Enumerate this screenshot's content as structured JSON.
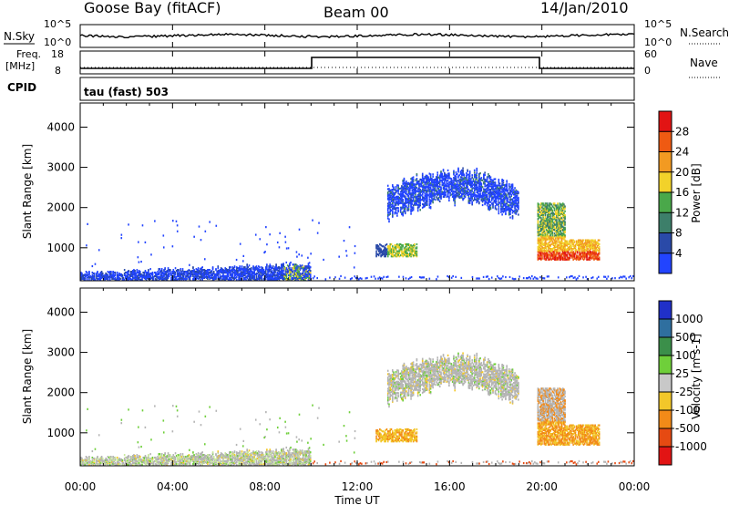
{
  "header": {
    "station": "Goose Bay (fitACF)",
    "beam": "Beam 00",
    "date": "14/Jan/2010"
  },
  "top_panels": {
    "nsky_label": "N.Sky",
    "nsearch_label": "N.Search",
    "freq_label_1": "Freq.",
    "freq_label_2": "[MHz]",
    "nave_label": "Nave",
    "cpid_label": "CPID",
    "cpid_text": "tau (fast) 503",
    "noise_tick_hi": "10^5",
    "noise_tick_lo": "10^0",
    "freq_tick_hi": "18",
    "freq_tick_lo": "8",
    "nave_tick_hi": "60",
    "nave_tick_lo": "0"
  },
  "chart_data": [
    {
      "type": "heatmap",
      "title": "Power",
      "xlabel": "Time UT",
      "ylabel": "Slant Range [km]",
      "xlim": [
        "00:00",
        "24:00"
      ],
      "ylim": [
        180,
        4600
      ],
      "x_ticks": [
        "00:00",
        "04:00",
        "08:00",
        "12:00",
        "16:00",
        "20:00",
        "00:00"
      ],
      "y_ticks": [
        1000,
        2000,
        3000,
        4000
      ],
      "colorbar": {
        "label": "Power [dB]",
        "ticks": [
          "4",
          "8",
          "12",
          "16",
          "20",
          "24",
          "28"
        ],
        "colors": [
          "#2244ff",
          "#2a4aa8",
          "#3d7f6a",
          "#4aa84a",
          "#f2d22a",
          "#f29a22",
          "#ef5a12",
          "#e21414"
        ]
      },
      "echo_regions": [
        {
          "t_start": 0.0,
          "t_end": 9.9,
          "r_min": 200,
          "r_max": 600,
          "typical_db": 6
        },
        {
          "t_start": 12.8,
          "t_end": 14.6,
          "r_min": 780,
          "r_max": 1100,
          "typical_db": 10
        },
        {
          "t_start": 13.3,
          "t_end": 19.0,
          "r_min": 1600,
          "r_max": 2900,
          "typical_db": 5
        },
        {
          "t_start": 19.8,
          "t_end": 22.5,
          "r_min": 700,
          "r_max": 2100,
          "typical_db": 18
        }
      ]
    },
    {
      "type": "heatmap",
      "title": "Velocity",
      "xlabel": "Time UT",
      "ylabel": "Slant Range [km]",
      "xlim": [
        "00:00",
        "24:00"
      ],
      "ylim": [
        180,
        4600
      ],
      "x_ticks": [
        "00:00",
        "04:00",
        "08:00",
        "12:00",
        "16:00",
        "20:00",
        "00:00"
      ],
      "y_ticks": [
        1000,
        2000,
        3000,
        4000
      ],
      "colorbar": {
        "label": "Velocity [m s-1]",
        "ticks": [
          "1000",
          "500",
          "100",
          "25",
          "-25",
          "-100",
          "-500",
          "-1000"
        ],
        "colors": [
          "#2030c8",
          "#2f6f9f",
          "#3b8f4a",
          "#6fcf3a",
          "#c8c8c8",
          "#f2c72a",
          "#f28a18",
          "#e64a12",
          "#e21414"
        ]
      }
    }
  ],
  "xaxis": {
    "label": "Time UT",
    "ticks": [
      "00:00",
      "04:00",
      "08:00",
      "12:00",
      "16:00",
      "20:00",
      "00:00"
    ]
  },
  "yaxis": {
    "label": "Slant Range [km]",
    "ticks": [
      "1000",
      "2000",
      "3000",
      "4000"
    ]
  },
  "colors": {
    "ground_scatter": "#b4b4b4",
    "axis": "#000000"
  }
}
